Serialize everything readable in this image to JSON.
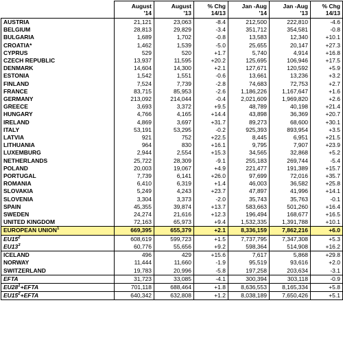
{
  "header": [
    "August\n'14",
    "August\n'13",
    "% Chg\n14/13",
    "Jan -Aug\n'14",
    "Jan -Aug\n'13",
    "% Chg\n14/13"
  ],
  "rows": [
    {
      "name": "AUSTRIA",
      "sup": "",
      "c1": "21,121",
      "c2": "23,063",
      "c3": "-8.4",
      "c4": "212,500",
      "c5": "222,810",
      "c6": "-4.6"
    },
    {
      "name": "BELGIUM",
      "sup": "",
      "c1": "28,813",
      "c2": "29,829",
      "c3": "-3.4",
      "c4": "351,712",
      "c5": "354,581",
      "c6": "-0.8"
    },
    {
      "name": "BULGARIA",
      "sup": "",
      "c1": "1,689",
      "c2": "1,702",
      "c3": "-0.8",
      "c4": "13,583",
      "c5": "12,340",
      "c6": "+10.1"
    },
    {
      "name": "CROATIA*",
      "sup": "",
      "c1": "1,462",
      "c2": "1,539",
      "c3": "-5.0",
      "c4": "25,655",
      "c5": "20,147",
      "c6": "+27.3"
    },
    {
      "name": "CYPRUS",
      "sup": "",
      "c1": "529",
      "c2": "520",
      "c3": "+1.7",
      "c4": "5,740",
      "c5": "4,914",
      "c6": "+16.8"
    },
    {
      "name": "CZECH REPUBLIC",
      "sup": "",
      "c1": "13,937",
      "c2": "11,595",
      "c3": "+20.2",
      "c4": "125,695",
      "c5": "106,946",
      "c6": "+17.5"
    },
    {
      "name": "DENMARK",
      "sup": "",
      "c1": "14,604",
      "c2": "14,300",
      "c3": "+2.1",
      "c4": "127,671",
      "c5": "120,592",
      "c6": "+5.9"
    },
    {
      "name": "ESTONIA",
      "sup": "",
      "c1": "1,542",
      "c2": "1,551",
      "c3": "-0.6",
      "c4": "13,661",
      "c5": "13,236",
      "c6": "+3.2"
    },
    {
      "name": "FINLAND",
      "sup": "",
      "c1": "7,524",
      "c2": "7,739",
      "c3": "-2.8",
      "c4": "74,683",
      "c5": "72,753",
      "c6": "+2.7"
    },
    {
      "name": "FRANCE",
      "sup": "",
      "c1": "83,715",
      "c2": "85,953",
      "c3": "-2.6",
      "c4": "1,186,226",
      "c5": "1,167,647",
      "c6": "+1.6"
    },
    {
      "name": "GERMANY",
      "sup": "",
      "c1": "213,092",
      "c2": "214,044",
      "c3": "-0.4",
      "c4": "2,021,609",
      "c5": "1,969,820",
      "c6": "+2.6"
    },
    {
      "name": "GREECE",
      "sup": "",
      "c1": "3,693",
      "c2": "3,372",
      "c3": "+9.5",
      "c4": "48,789",
      "c5": "40,198",
      "c6": "+21.4"
    },
    {
      "name": "HUNGARY",
      "sup": "",
      "c1": "4,766",
      "c2": "4,165",
      "c3": "+14.4",
      "c4": "43,898",
      "c5": "36,369",
      "c6": "+20.7"
    },
    {
      "name": "IRELAND",
      "sup": "",
      "c1": "4,869",
      "c2": "3,697",
      "c3": "+31.7",
      "c4": "89,273",
      "c5": "68,600",
      "c6": "+30.1"
    },
    {
      "name": "ITALY",
      "sup": "",
      "c1": "53,191",
      "c2": "53,295",
      "c3": "-0.2",
      "c4": "925,393",
      "c5": "893,954",
      "c6": "+3.5"
    },
    {
      "name": "LATVIA",
      "sup": "",
      "c1": "921",
      "c2": "752",
      "c3": "+22.5",
      "c4": "8,445",
      "c5": "6,951",
      "c6": "+21.5"
    },
    {
      "name": "LITHUANIA",
      "sup": "",
      "c1": "964",
      "c2": "830",
      "c3": "+16.1",
      "c4": "9,795",
      "c5": "7,907",
      "c6": "+23.9"
    },
    {
      "name": "LUXEMBURG",
      "sup": "",
      "c1": "2,944",
      "c2": "2,554",
      "c3": "+15.3",
      "c4": "34,565",
      "c5": "32,868",
      "c6": "+5.2"
    },
    {
      "name": "NETHERLANDS",
      "sup": "",
      "c1": "25,722",
      "c2": "28,309",
      "c3": "-9.1",
      "c4": "255,183",
      "c5": "269,744",
      "c6": "-5.4"
    },
    {
      "name": "POLAND",
      "sup": "",
      "c1": "20,003",
      "c2": "19,067",
      "c3": "+4.9",
      "c4": "221,477",
      "c5": "191,389",
      "c6": "+15.7"
    },
    {
      "name": "PORTUGAL",
      "sup": "",
      "c1": "7,739",
      "c2": "6,141",
      "c3": "+26.0",
      "c4": "97,699",
      "c5": "72,016",
      "c6": "+35.7"
    },
    {
      "name": "ROMANIA",
      "sup": "",
      "c1": "6,410",
      "c2": "6,319",
      "c3": "+1.4",
      "c4": "46,003",
      "c5": "36,582",
      "c6": "+25.8"
    },
    {
      "name": "SLOVAKIA",
      "sup": "",
      "c1": "5,249",
      "c2": "4,243",
      "c3": "+23.7",
      "c4": "47,897",
      "c5": "41,996",
      "c6": "+14.1"
    },
    {
      "name": "SLOVENIA",
      "sup": "",
      "c1": "3,304",
      "c2": "3,373",
      "c3": "-2.0",
      "c4": "35,743",
      "c5": "35,763",
      "c6": "-0.1"
    },
    {
      "name": "SPAIN",
      "sup": "",
      "c1": "45,355",
      "c2": "39,874",
      "c3": "+13.7",
      "c4": "583,663",
      "c5": "501,260",
      "c6": "+16.4"
    },
    {
      "name": "SWEDEN",
      "sup": "",
      "c1": "24,274",
      "c2": "21,616",
      "c3": "+12.3",
      "c4": "196,494",
      "c5": "168,677",
      "c6": "+16.5"
    },
    {
      "name": "UNITED KINGDOM",
      "sup": "",
      "c1": "72,163",
      "c2": "65,973",
      "c3": "+9.4",
      "c4": "1,532,335",
      "c5": "1,391,788",
      "c6": "+10.1"
    },
    {
      "name": "EUROPEAN UNION",
      "sup": "1",
      "c1": "669,395",
      "c2": "655,379",
      "c3": "+2.1",
      "c4": "8,336,159",
      "c5": "7,862,216",
      "c6": "+6.0"
    },
    {
      "name": "EU15",
      "sup": "2",
      "c1": "608,619",
      "c2": "599,723",
      "c3": "+1.5",
      "c4": "7,737,795",
      "c5": "7,347,308",
      "c6": "+5.3"
    },
    {
      "name": "EU13",
      "sup": "3",
      "c1": "60,776",
      "c2": "55,656",
      "c3": "+9.2",
      "c4": "598,364",
      "c5": "514,908",
      "c6": "+16.2"
    },
    {
      "name": "ICELAND",
      "sup": "",
      "c1": "496",
      "c2": "429",
      "c3": "+15.6",
      "c4": "7,617",
      "c5": "5,868",
      "c6": "+29.8"
    },
    {
      "name": "NORWAY",
      "sup": "",
      "c1": "11,444",
      "c2": "11,660",
      "c3": "-1.9",
      "c4": "95,519",
      "c5": "93,616",
      "c6": "+2.0"
    },
    {
      "name": "SWITZERLAND",
      "sup": "",
      "c1": "19,783",
      "c2": "20,996",
      "c3": "-5.8",
      "c4": "197,258",
      "c5": "203,634",
      "c6": "-3.1"
    },
    {
      "name": "EFTA",
      "sup": "",
      "c1": "31,723",
      "c2": "33,085",
      "c3": "-4.1",
      "c4": "300,394",
      "c5": "303,118",
      "c6": "-0.9"
    },
    {
      "name": "EU28",
      "sup": "1",
      "suffix": "+EFTA",
      "c1": "701,118",
      "c2": "688,464",
      "c3": "+1.8",
      "c4": "8,636,553",
      "c5": "8,165,334",
      "c6": "+5.8"
    },
    {
      "name": "EU15",
      "sup": "2",
      "suffix": "+EFTA",
      "c1": "640,342",
      "c2": "632,808",
      "c3": "+1.2",
      "c4": "8,038,189",
      "c5": "7,650,426",
      "c6": "+5.1"
    }
  ]
}
